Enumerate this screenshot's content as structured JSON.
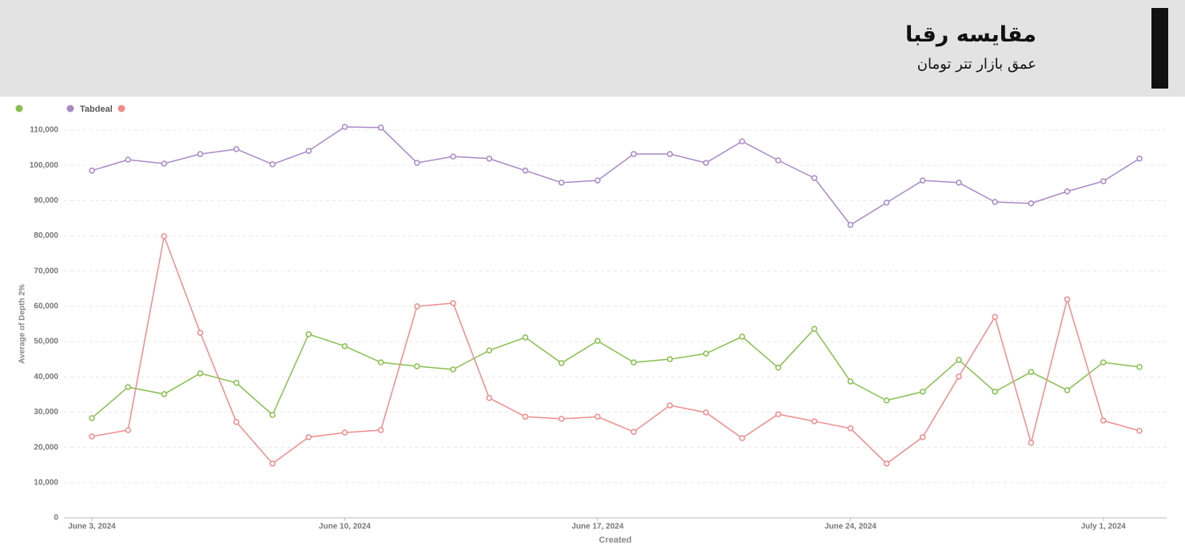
{
  "header": {
    "title": "مقایسه رقبا",
    "subtitle": "عمق بازار تتر تومان"
  },
  "chart_data": {
    "type": "line",
    "y_label": "Average of Depth 2%",
    "x_label": "Created",
    "x": [
      "2024-06-03",
      "2024-06-04",
      "2024-06-05",
      "2024-06-06",
      "2024-06-07",
      "2024-06-08",
      "2024-06-09",
      "2024-06-10",
      "2024-06-11",
      "2024-06-12",
      "2024-06-13",
      "2024-06-14",
      "2024-06-15",
      "2024-06-16",
      "2024-06-17",
      "2024-06-18",
      "2024-06-19",
      "2024-06-20",
      "2024-06-21",
      "2024-06-22",
      "2024-06-23",
      "2024-06-24",
      "2024-06-25",
      "2024-06-26",
      "2024-06-27",
      "2024-06-28",
      "2024-06-29",
      "2024-06-30",
      "2024-07-01",
      "2024-07-02"
    ],
    "xticks": [
      {
        "value": "2024-06-03",
        "label": "June 3, 2024"
      },
      {
        "value": "2024-06-10",
        "label": "June 10, 2024"
      },
      {
        "value": "2024-06-17",
        "label": "June 17, 2024"
      },
      {
        "value": "2024-06-24",
        "label": "June 24, 2024"
      },
      {
        "value": "2024-07-01",
        "label": "July 1, 2024"
      }
    ],
    "ylim": [
      0,
      110000
    ],
    "yticks": [
      0,
      {
        "value": 10000,
        "label": "10,000"
      },
      {
        "value": 20000,
        "label": "20,000"
      },
      {
        "value": 30000,
        "label": "30,000"
      },
      {
        "value": 40000,
        "label": "40,000"
      },
      {
        "value": 50000,
        "label": "50,000"
      },
      {
        "value": 60000,
        "label": "60,000"
      },
      {
        "value": 70000,
        "label": "70,000"
      },
      {
        "value": 80000,
        "label": "80,000"
      },
      {
        "value": 90000,
        "label": "90,000"
      },
      {
        "value": 100000,
        "label": "100,000"
      },
      {
        "value": 110000,
        "label": "110,000"
      }
    ],
    "grid": true,
    "series": [
      {
        "name": null,
        "color": "#88bf4d",
        "values": [
          28300,
          37100,
          35100,
          41000,
          38300,
          29200,
          52100,
          48700,
          44100,
          43000,
          42100,
          47500,
          51200,
          43900,
          50200,
          44100,
          45000,
          46600,
          51400,
          42600,
          53600,
          38700,
          33300,
          35800,
          44800,
          35800,
          41400,
          36200,
          44100,
          42800
        ]
      },
      {
        "name": "Tabdeal",
        "color": "#a989c5",
        "values": [
          98500,
          101600,
          100500,
          103200,
          104600,
          100300,
          104100,
          110900,
          110700,
          100700,
          102500,
          101900,
          98500,
          95100,
          95700,
          103200,
          103200,
          100700,
          106800,
          101400,
          96400,
          83100,
          89400,
          95700,
          95100,
          89600,
          89200,
          92600,
          95500,
          101900
        ]
      },
      {
        "name": null,
        "color": "#ef8c8c",
        "values": [
          23100,
          24900,
          79900,
          52500,
          27200,
          15400,
          22900,
          24200,
          24900,
          60000,
          60900,
          34000,
          28700,
          28100,
          28700,
          24400,
          31900,
          29900,
          22600,
          29400,
          27400,
          25400,
          15400,
          22900,
          40100,
          57000,
          21300,
          62000,
          27600,
          24700
        ]
      }
    ]
  }
}
